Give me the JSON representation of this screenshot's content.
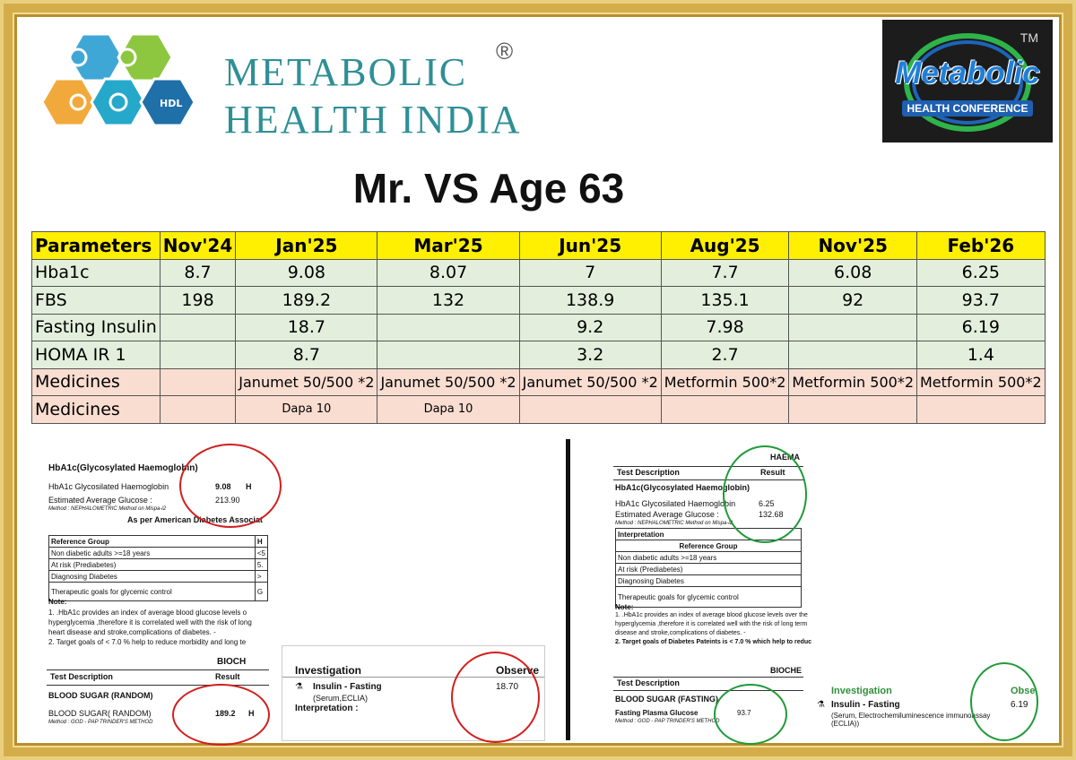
{
  "brand": {
    "line1": "METABOLIC",
    "line2": "HEALTH INDIA",
    "registered": "®"
  },
  "conference": {
    "tm": "TM",
    "name": "Metabolic",
    "subtitle": "HEALTH CONFERENCE"
  },
  "title": "Mr. VS Age 63",
  "table": {
    "headers": [
      "Parameters",
      "Nov'24",
      "Jan'25",
      "Mar'25",
      "Jun'25",
      "Aug'25",
      "Nov'25",
      "Feb'26"
    ],
    "rows": [
      [
        "Hba1c",
        "8.7",
        "9.08",
        "8.07",
        "7",
        "7.7",
        "6.08",
        "6.25"
      ],
      [
        "FBS",
        "198",
        "189.2",
        "132",
        "138.9",
        "135.1",
        "92",
        "93.7"
      ],
      [
        "Fasting Insulin",
        "",
        "18.7",
        "",
        "9.2",
        "7.98",
        "",
        "6.19"
      ],
      [
        "HOMA IR 1",
        "",
        "8.7",
        "",
        "3.2",
        "2.7",
        "",
        "1.4"
      ],
      [
        "Medicines",
        "",
        "Janumet 50/500 *2",
        "Janumet 50/500 *2",
        "Janumet 50/500 *2",
        "Metformin 500*2",
        "Metformin 500*2",
        "Metformin 500*2"
      ],
      [
        "Medicines",
        "",
        "Dapa 10",
        "Dapa 10",
        "",
        "",
        "",
        ""
      ]
    ]
  },
  "report1": {
    "heading": "HbA1c(Glycosylated Haemoglobin)",
    "row1_label": "HbA1c Glycosilated Haemoglobin",
    "row1_value": "9.08",
    "row1_flag": "H",
    "row2_label": "Estimated Average Glucose :",
    "row2_value": "213.90",
    "method": "Method : NEPHALOMETRIC Method on Mispa-i2",
    "ada": "As per American Diabetes Associat",
    "ref_header": "Reference Group",
    "ref_col2": "H",
    "refs": [
      "Non diabetic adults >=18 years",
      "At risk (Prediabetes)",
      "Diagnosing Diabetes",
      "Therapeutic goals for glycemic control"
    ],
    "ref_vals": [
      "<5",
      "5.",
      "> ",
      "G"
    ],
    "note_title": "Note:",
    "notes": [
      "1. .HbA1c provides an index of average blood glucose levels o",
      "hyperglycemia ,therefore it is correlated well with the risk of long",
      "heart disease and stroke,complications of diabetes. -",
      "2. Target goals of < 7.0 % help to reduce morbidity and long te"
    ],
    "bioch": "BIOCH",
    "test_desc": "Test Description",
    "result": "Result",
    "bs_head": "BLOOD SUGAR (RANDOM)",
    "bs_label": "BLOOD SUGAR( RANDOM)",
    "bs_value": "189.2",
    "bs_flag": "H",
    "bs_method": "Method : GOD - PAP TRINDER'S METHOD"
  },
  "report2": {
    "investigation": "Investigation",
    "observed": "Observe",
    "test": "Insulin - Fasting",
    "sample": "(Serum,ECLIA)",
    "value": "18.70",
    "interp": "Interpretation :"
  },
  "report3": {
    "top": "HAEMA",
    "test_desc": "Test Description",
    "result": "Result",
    "heading": "HbA1c(Glycosylated Haemoglobin)",
    "row1_label": "HbA1c Glycosilated Haemoglobin",
    "row1_value": "6.25",
    "row2_label": "Estimated Average Glucose :",
    "row2_value": "132.68",
    "method": "Method : NEPHALOMETRIC Method on Mispa-i2",
    "interp": "Interpretation",
    "ref_header": "Reference Group",
    "refs": [
      "Non diabetic adults >=18 years",
      "At risk (Prediabetes)",
      "Diagnosing Diabetes",
      "Therapeutic goals for glycemic control"
    ],
    "note_title": "Note:",
    "notes": [
      "1. .HbA1c provides an index of average blood glucose levels over the",
      "hyperglycemia ,therefore it is correlated well with the risk of long term",
      "disease and stroke,complications of diabetes. -",
      "2. Target goals of Diabetes Pateints is < 7.0 % which help to reduc"
    ],
    "bioch": "BIOCHE",
    "bs_head": "BLOOD SUGAR (FASTING)",
    "bs_label": "Fasting Plasma Glucose",
    "bs_value": "93.7",
    "bs_method": "Method : GOD - PAP TRINDER'S METHOD"
  },
  "report4": {
    "investigation": "Investigation",
    "observed": "Obse",
    "test": "Insulin - Fasting",
    "sample": "(Serum, Electrochemiluminescence immunoassay (ECLIA))",
    "value": "6.19"
  }
}
